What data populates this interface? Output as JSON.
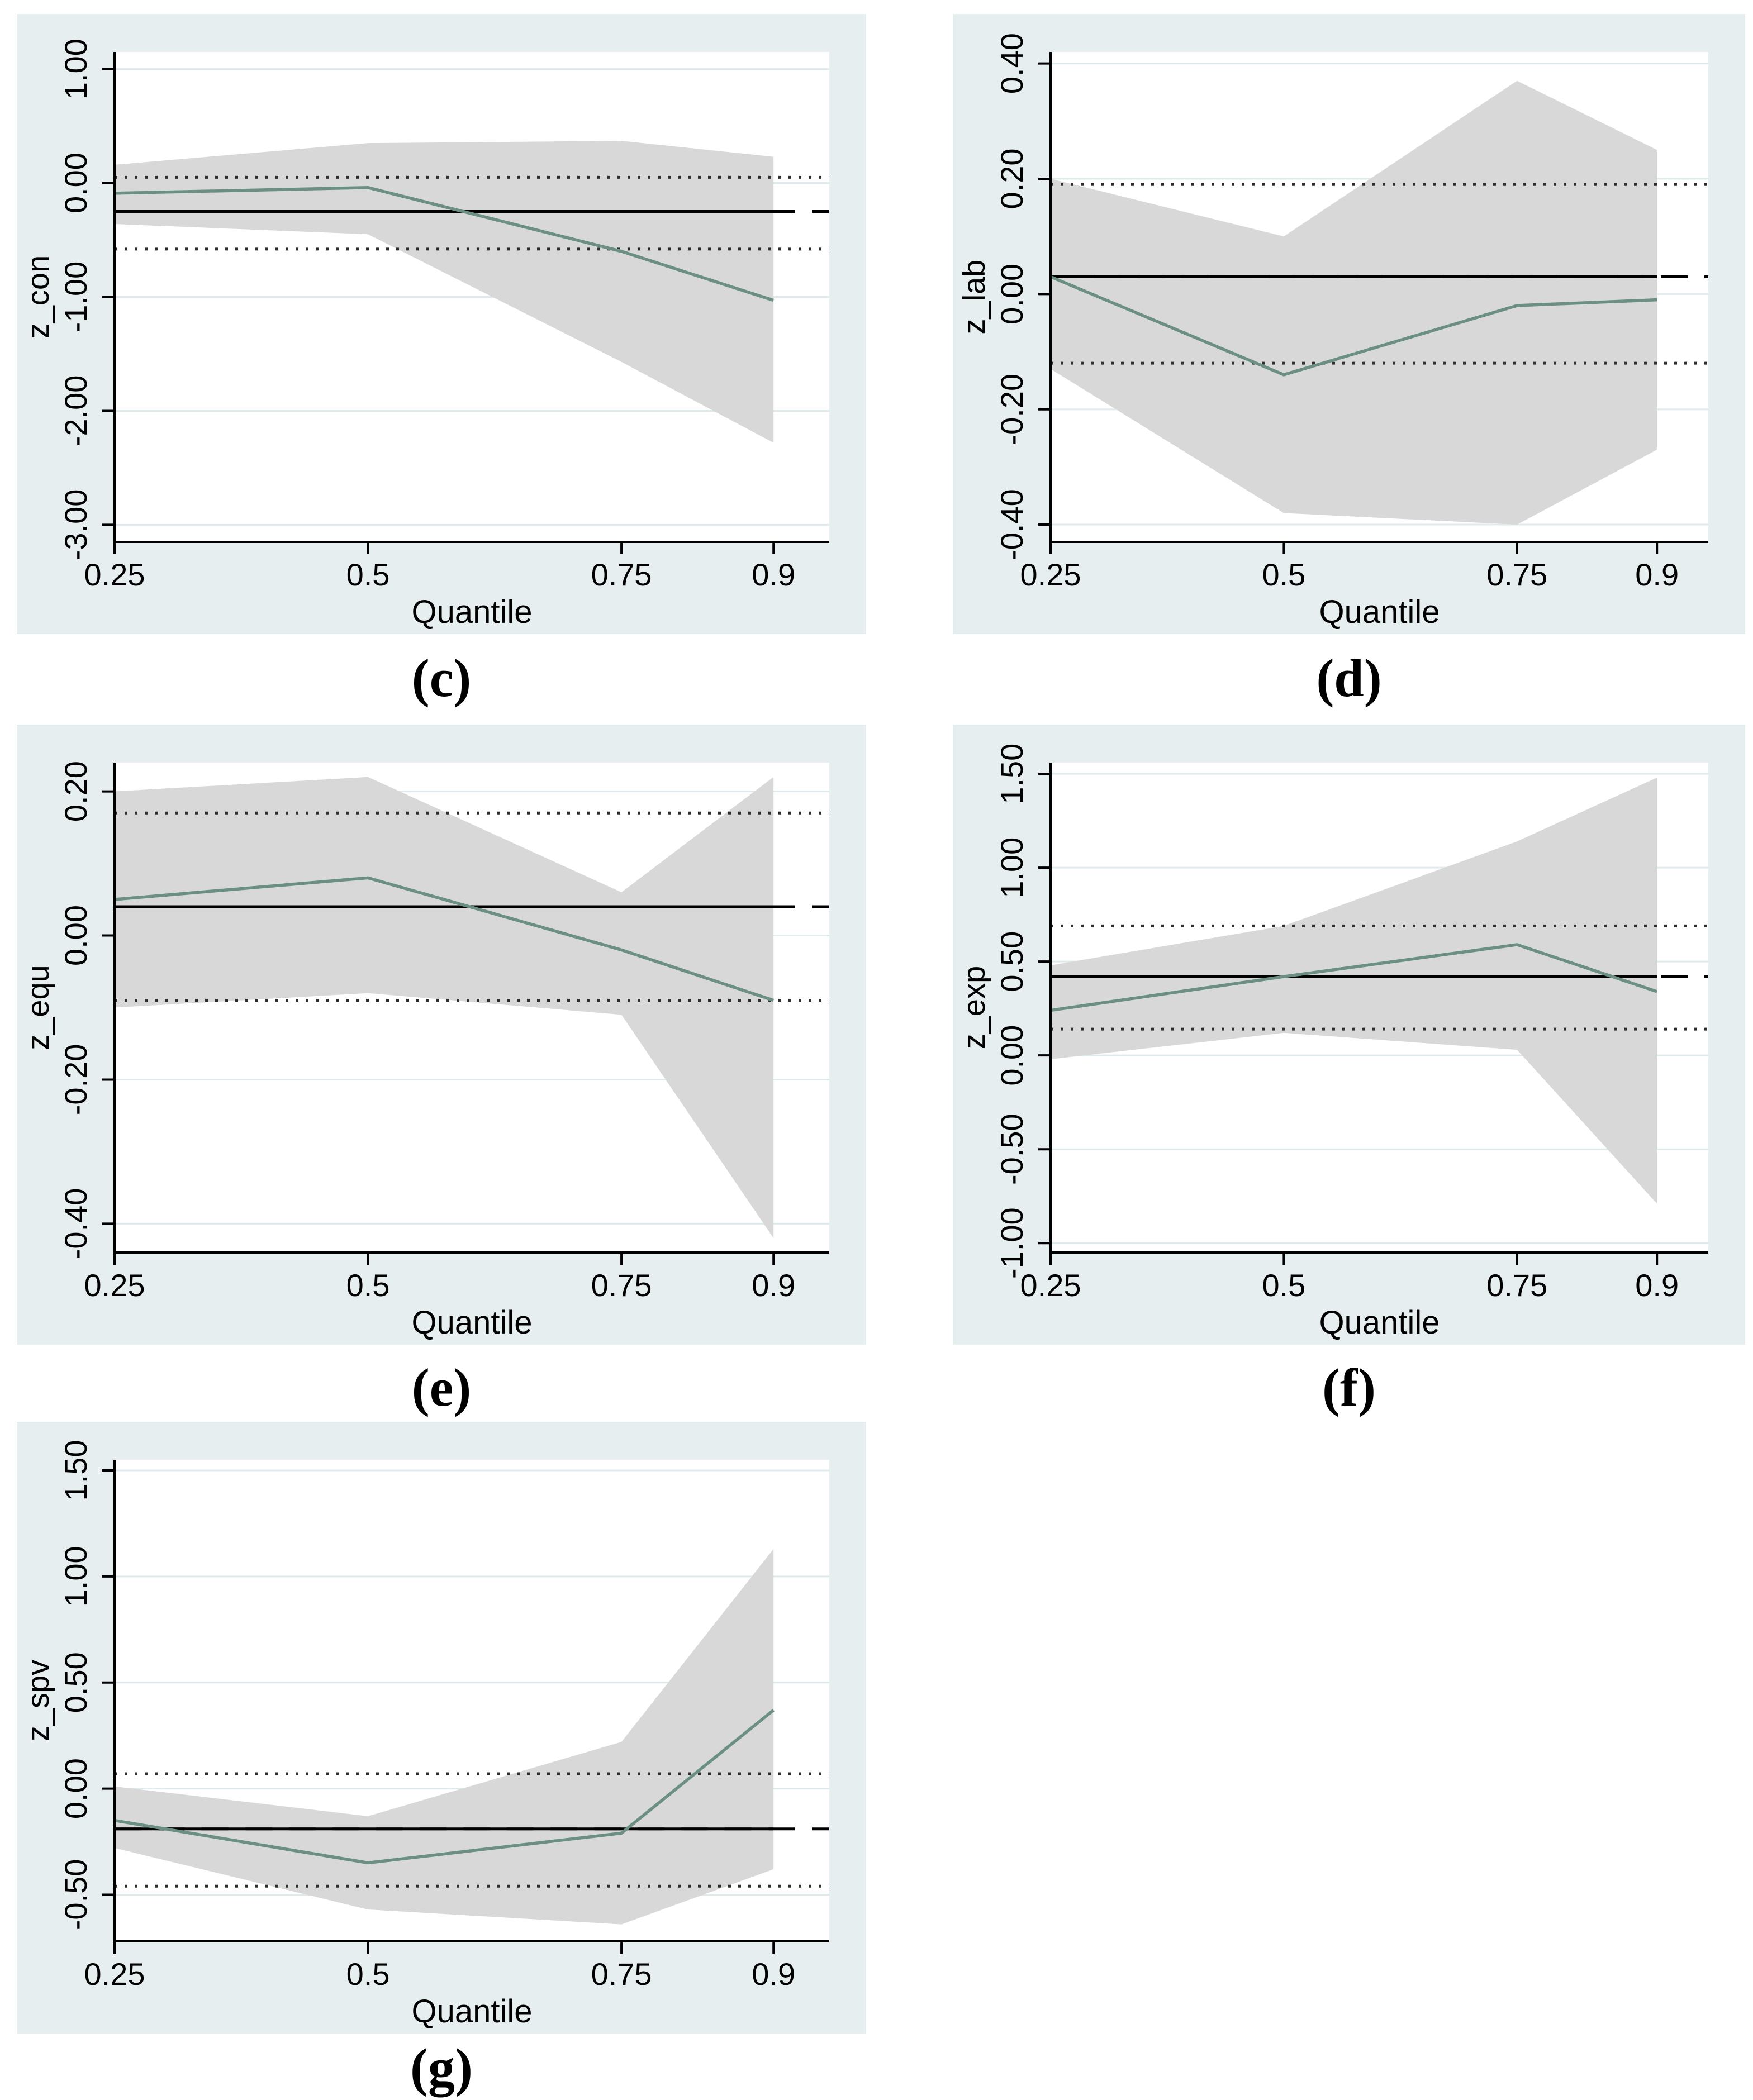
{
  "styles": {
    "panel_bg": "#e7eef0",
    "plot_bg": "#ffffff",
    "grid_color": "#dfeaec",
    "band_color": "#d8d8d8",
    "line_color": "#6b9081",
    "ols_color": "#000000",
    "dotted_color": "#2e2e2e",
    "axis_color": "#000000",
    "text_color": "#000000"
  },
  "x_axis": {
    "label": "Quantile",
    "tick_labels": [
      "0.25",
      "0.5",
      "0.75",
      "0.9"
    ],
    "tick_values": [
      0.25,
      0.5,
      0.75,
      0.9
    ]
  },
  "chart_data": [
    {
      "id": "c",
      "caption": "(c)",
      "type": "line",
      "ylabel": "z_con",
      "xlabel": "Quantile",
      "x": [
        0.25,
        0.5,
        0.75,
        0.9
      ],
      "xlim": [
        0.25,
        0.955
      ],
      "ylim": [
        -3.15,
        1.15
      ],
      "grid": true,
      "legend": "none",
      "yticks": [
        {
          "v": 1.0,
          "label": "1.00"
        },
        {
          "v": 0.0,
          "label": "0.00"
        },
        {
          "v": -1.0,
          "label": "-1.00"
        },
        {
          "v": -2.0,
          "label": "-2.00"
        },
        {
          "v": -3.0,
          "label": "-3.00"
        }
      ],
      "series": [
        {
          "name": "quantile_estimate",
          "values": [
            -0.09,
            -0.04,
            -0.6,
            -1.03
          ]
        },
        {
          "name": "ci_upper",
          "values": [
            0.16,
            0.35,
            0.37,
            0.23
          ]
        },
        {
          "name": "ci_lower",
          "values": [
            -0.36,
            -0.45,
            -1.57,
            -2.28
          ]
        }
      ],
      "ols": {
        "estimate": -0.25,
        "ci_upper": 0.05,
        "ci_lower": -0.58
      }
    },
    {
      "id": "d",
      "caption": "(d)",
      "type": "line",
      "ylabel": "z_lab",
      "xlabel": "Quantile",
      "x": [
        0.25,
        0.5,
        0.75,
        0.9
      ],
      "xlim": [
        0.25,
        0.955
      ],
      "ylim": [
        -0.43,
        0.42
      ],
      "grid": true,
      "legend": "none",
      "yticks": [
        {
          "v": 0.4,
          "label": "0.40"
        },
        {
          "v": 0.2,
          "label": "0.20"
        },
        {
          "v": 0.0,
          "label": "0.00"
        },
        {
          "v": -0.2,
          "label": "-0.20"
        },
        {
          "v": -0.4,
          "label": "-0.40"
        }
      ],
      "series": [
        {
          "name": "quantile_estimate",
          "values": [
            0.03,
            -0.14,
            -0.02,
            -0.01
          ]
        },
        {
          "name": "ci_upper",
          "values": [
            0.2,
            0.1,
            0.37,
            0.25
          ]
        },
        {
          "name": "ci_lower",
          "values": [
            -0.13,
            -0.38,
            -0.4,
            -0.27
          ]
        }
      ],
      "ols": {
        "estimate": 0.03,
        "ci_upper": 0.19,
        "ci_lower": -0.12
      }
    },
    {
      "id": "e",
      "caption": "(e)",
      "type": "line",
      "ylabel": "z_equ",
      "xlabel": "Quantile",
      "x": [
        0.25,
        0.5,
        0.75,
        0.9
      ],
      "xlim": [
        0.25,
        0.955
      ],
      "ylim": [
        -0.44,
        0.24
      ],
      "grid": true,
      "legend": "none",
      "yticks": [
        {
          "v": 0.2,
          "label": "0.20"
        },
        {
          "v": 0.0,
          "label": "0.00"
        },
        {
          "v": -0.2,
          "label": "-0.20"
        },
        {
          "v": -0.4,
          "label": "-0.40"
        }
      ],
      "series": [
        {
          "name": "quantile_estimate",
          "values": [
            0.05,
            0.08,
            -0.02,
            -0.09
          ]
        },
        {
          "name": "ci_upper",
          "values": [
            0.2,
            0.22,
            0.06,
            0.22
          ]
        },
        {
          "name": "ci_lower",
          "values": [
            -0.1,
            -0.08,
            -0.11,
            -0.42
          ]
        }
      ],
      "ols": {
        "estimate": 0.04,
        "ci_upper": 0.17,
        "ci_lower": -0.09
      }
    },
    {
      "id": "f",
      "caption": "(f)",
      "type": "line",
      "ylabel": "z_exp",
      "xlabel": "Quantile",
      "x": [
        0.25,
        0.5,
        0.75,
        0.9
      ],
      "xlim": [
        0.25,
        0.955
      ],
      "ylim": [
        -1.05,
        1.56
      ],
      "grid": true,
      "legend": "none",
      "yticks": [
        {
          "v": 1.5,
          "label": "1.50"
        },
        {
          "v": 1.0,
          "label": "1.00"
        },
        {
          "v": 0.5,
          "label": "0.50"
        },
        {
          "v": 0.0,
          "label": "0.00"
        },
        {
          "v": -0.5,
          "label": "-0.50"
        },
        {
          "v": -1.0,
          "label": "-1.00"
        }
      ],
      "series": [
        {
          "name": "quantile_estimate",
          "values": [
            0.24,
            0.42,
            0.59,
            0.34
          ]
        },
        {
          "name": "ci_upper",
          "values": [
            0.48,
            0.69,
            1.14,
            1.48
          ]
        },
        {
          "name": "ci_lower",
          "values": [
            -0.02,
            0.12,
            0.03,
            -0.79
          ]
        }
      ],
      "ols": {
        "estimate": 0.42,
        "ci_upper": 0.69,
        "ci_lower": 0.14
      }
    },
    {
      "id": "g",
      "caption": "(g)",
      "type": "line",
      "ylabel": "z_spv",
      "xlabel": "Quantile",
      "x": [
        0.25,
        0.5,
        0.75,
        0.9
      ],
      "xlim": [
        0.25,
        0.955
      ],
      "ylim": [
        -0.72,
        1.55
      ],
      "grid": true,
      "legend": "none",
      "yticks": [
        {
          "v": 1.5,
          "label": "1.50"
        },
        {
          "v": 1.0,
          "label": "1.00"
        },
        {
          "v": 0.5,
          "label": "0.50"
        },
        {
          "v": 0.0,
          "label": "0.00"
        },
        {
          "v": -0.5,
          "label": "-0.50"
        }
      ],
      "series": [
        {
          "name": "quantile_estimate",
          "values": [
            -0.15,
            -0.35,
            -0.21,
            0.37
          ]
        },
        {
          "name": "ci_upper",
          "values": [
            0.01,
            -0.13,
            0.22,
            1.13
          ]
        },
        {
          "name": "ci_lower",
          "values": [
            -0.28,
            -0.57,
            -0.64,
            -0.38
          ]
        }
      ],
      "ols": {
        "estimate": -0.19,
        "ci_upper": 0.07,
        "ci_lower": -0.46
      }
    }
  ]
}
